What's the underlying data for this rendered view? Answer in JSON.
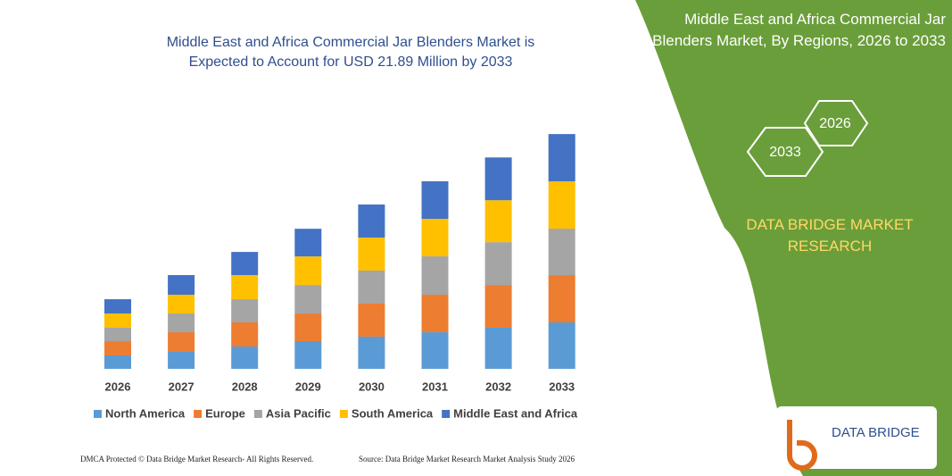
{
  "chart_data": {
    "type": "stacked-bar",
    "title": "Middle East and Africa Commercial Jar Blenders Market is Expected to Account for USD 21.89 Million by 2033",
    "categories": [
      "2026",
      "2027",
      "2028",
      "2029",
      "2030",
      "2031",
      "2032",
      "2033"
    ],
    "series": [
      {
        "name": "North America",
        "color": "#5b9bd5",
        "values": [
          1.25,
          1.66,
          2.08,
          2.58,
          3.0,
          3.41,
          3.83,
          4.33
        ]
      },
      {
        "name": "Europe",
        "color": "#ed7d31",
        "values": [
          1.33,
          1.75,
          2.25,
          2.58,
          3.08,
          3.5,
          3.99,
          4.41
        ]
      },
      {
        "name": "Asia Pacific",
        "color": "#a5a5a5",
        "values": [
          1.25,
          1.75,
          2.16,
          2.66,
          3.08,
          3.58,
          3.99,
          4.33
        ]
      },
      {
        "name": "South America",
        "color": "#ffc000",
        "values": [
          1.33,
          1.75,
          2.25,
          2.66,
          3.08,
          3.5,
          3.91,
          4.41
        ]
      },
      {
        "name": "Middle East and Africa",
        "color": "#4472c4",
        "values": [
          1.33,
          1.83,
          2.16,
          2.58,
          3.08,
          3.5,
          3.99,
          4.41
        ]
      }
    ],
    "ylim": [
      0,
      22
    ]
  },
  "panel": {
    "title": "Middle East and Africa Commercial Jar Blenders Market, By Regions, 2026 to 2033",
    "hex_start": "2026",
    "hex_end": "2033",
    "brand": "DATA BRIDGE MARKET RESEARCH",
    "logo": "DATA BRIDGE"
  },
  "footer": {
    "left": "DMCA Protected © Data Bridge Market Research-  All Rights Reserved.",
    "right": "Source: Data Bridge Market Research  Market Analysis Study 2026"
  }
}
